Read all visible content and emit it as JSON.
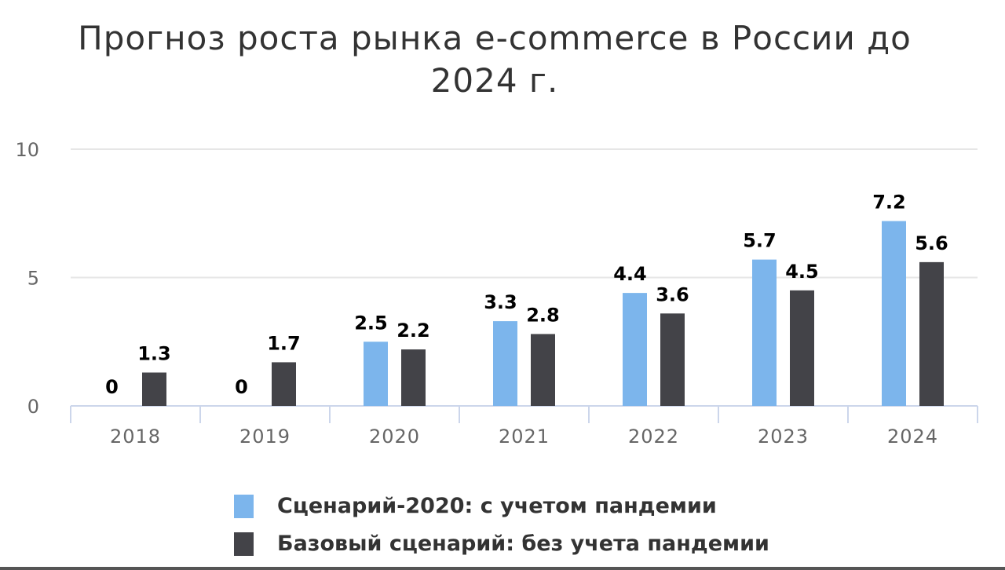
{
  "chart_data": {
    "type": "bar",
    "title": "Прогноз роста рынка e-commerce в России до 2024 г.",
    "categories": [
      "2018",
      "2019",
      "2020",
      "2021",
      "2022",
      "2023",
      "2024"
    ],
    "series": [
      {
        "name": "Сценарий-2020: с учетом пандемии",
        "color": "#7cb5ec",
        "values": [
          0,
          0,
          2.5,
          3.3,
          4.4,
          5.7,
          7.2
        ]
      },
      {
        "name": "Базовый сценарий: без учета пандемии",
        "color": "#434348",
        "values": [
          1.3,
          1.7,
          2.2,
          2.8,
          3.6,
          4.5,
          5.6
        ]
      }
    ],
    "ylim": [
      0,
      10
    ],
    "yticks": [
      0,
      5,
      10
    ],
    "grid": true,
    "data_labels": true,
    "legend": "bottom"
  }
}
